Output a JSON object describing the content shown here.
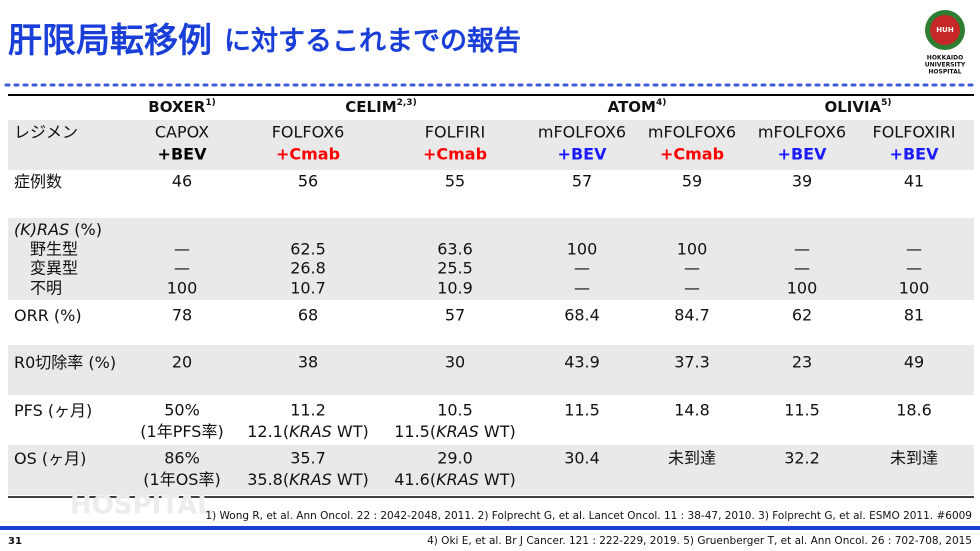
{
  "header": {
    "title_main": "肝限局転移例",
    "title_rest": "に対するこれまでの報告",
    "logo": {
      "abbr": "HUH",
      "lines": [
        "HOKKAIDO",
        "UNIVERSITY",
        "HOSPITAL"
      ]
    }
  },
  "table": {
    "groups": [
      {
        "name": "BOXER",
        "sup": "1)"
      },
      {
        "name": "CELIM",
        "sup": "2,3)"
      },
      {
        "name": "ATOM",
        "sup": "4)"
      },
      {
        "name": "OLIVIA",
        "sup": "5)"
      }
    ],
    "regimen_label": "レジメン",
    "regimens": [
      {
        "base": "CAPOX",
        "agent": "+BEV",
        "color": "#000000"
      },
      {
        "base": "FOLFOX6",
        "agent": "+Cmab",
        "color": "#ff0000"
      },
      {
        "base": "FOLFIRI",
        "agent": "+Cmab",
        "color": "#ff0000"
      },
      {
        "base": "mFOLFOX6",
        "agent": "+BEV",
        "color": "#1a1aff"
      },
      {
        "base": "mFOLFOX6",
        "agent": "+Cmab",
        "color": "#ff0000"
      },
      {
        "base": "mFOLFOX6",
        "agent": "+BEV",
        "color": "#1a1aff"
      },
      {
        "base": "FOLFOXIRI",
        "agent": "+BEV",
        "color": "#1a1aff"
      }
    ],
    "rows": [
      {
        "label": [
          {
            "t": "症例数"
          }
        ],
        "cells": [
          "46",
          "56",
          "55",
          "57",
          "59",
          "39",
          "41"
        ]
      },
      {
        "label": [
          {
            "t": "(K)RAS",
            "italic": true
          },
          {
            "t": " (%)"
          }
        ],
        "subrows": [
          {
            "label": "野生型",
            "cells": [
              "—",
              "62.5",
              "63.6",
              "100",
              "100",
              "—",
              "—"
            ]
          },
          {
            "label": "変異型",
            "cells": [
              "—",
              "26.8",
              "25.5",
              "—",
              "—",
              "—",
              "—"
            ]
          },
          {
            "label": "不明",
            "cells": [
              "100",
              "10.7",
              "10.9",
              "—",
              "—",
              "100",
              "100"
            ]
          }
        ]
      },
      {
        "label": [
          {
            "t": "ORR (%)"
          }
        ],
        "cells": [
          "78",
          "68",
          "57",
          "68.4",
          "84.7",
          "62",
          "81"
        ]
      },
      {
        "label": [
          {
            "t": "R0切除率 (%)"
          }
        ],
        "cells": [
          "20",
          "38",
          "30",
          "43.9",
          "37.3",
          "23",
          "49"
        ]
      },
      {
        "label": [
          {
            "t": "PFS (ヶ月)"
          }
        ],
        "cells": [
          {
            "main": "50%",
            "sub": [
              {
                "t": "(1年PFS率)"
              }
            ]
          },
          {
            "main": "11.2",
            "sub": [
              {
                "t": "12.1("
              },
              {
                "t": "KRAS",
                "italic": true
              },
              {
                "t": " WT)"
              }
            ]
          },
          {
            "main": "10.5",
            "sub": [
              {
                "t": "11.5("
              },
              {
                "t": "KRAS",
                "italic": true
              },
              {
                "t": " WT)"
              }
            ]
          },
          "11.5",
          "14.8",
          "11.5",
          "18.6"
        ]
      },
      {
        "label": [
          {
            "t": "OS (ヶ月)"
          }
        ],
        "cells": [
          {
            "main": "86%",
            "sub": [
              {
                "t": "(1年OS率)"
              }
            ]
          },
          {
            "main": "35.7",
            "sub": [
              {
                "t": "35.8("
              },
              {
                "t": "KRAS",
                "italic": true
              },
              {
                "t": " WT)"
              }
            ]
          },
          {
            "main": "29.0",
            "sub": [
              {
                "t": "41.6("
              },
              {
                "t": "KRAS",
                "italic": true
              },
              {
                "t": " WT)"
              }
            ]
          },
          "30.4",
          "未到達",
          "32.2",
          "未到達"
        ]
      }
    ]
  },
  "watermark": "HOSPITAL",
  "footnotes": [
    "1) Wong R, et al. Ann Oncol. 22 : 2042-2048, 2011. 2) Folprecht G, et al. Lancet Oncol. 11 : 38-47, 2010. 3) Folprecht G, et al. ESMO 2011. #6009",
    "4) Oki E, et al. Br J Cancer. 121 : 222-229, 2019. 5) Gruenberger T, et al. Ann Oncol. 26 : 702-708, 2015"
  ],
  "page_number": "31"
}
